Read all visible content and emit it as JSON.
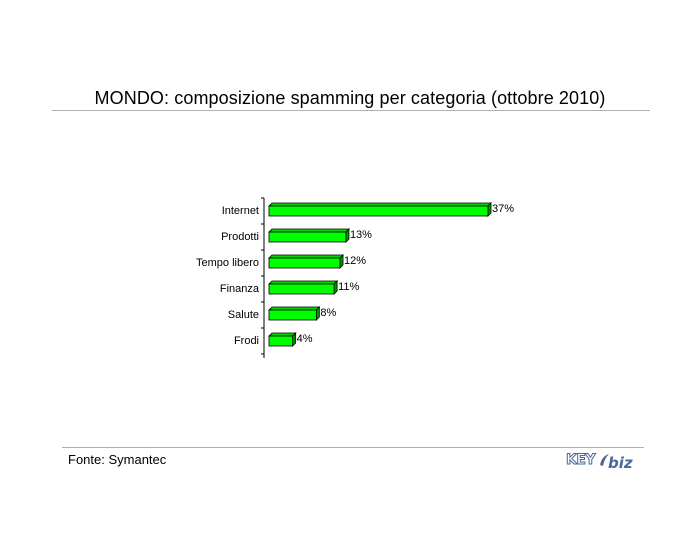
{
  "page": {
    "title": "MONDO: composizione spamming per categoria (ottobre 2010)",
    "source": "Fonte: Symantec",
    "logo": {
      "key_text": "KEY",
      "biz_text": "biz",
      "color": "#4a6a99"
    }
  },
  "chart_data": {
    "type": "bar",
    "orientation": "horizontal",
    "title": "MONDO: composizione spamming per categoria (ottobre 2010)",
    "categories": [
      "Internet",
      "Prodotti",
      "Tempo libero",
      "Finanza",
      "Salute",
      "Frodi"
    ],
    "values": [
      37,
      13,
      12,
      11,
      8,
      4
    ],
    "value_labels": [
      "37%",
      "13%",
      "12%",
      "11%",
      "8%",
      "4%"
    ],
    "unit": "%",
    "xlim": [
      0,
      37
    ],
    "bar_color": "#00ff00",
    "bar_style": "3d",
    "grid": false,
    "legend": "none"
  }
}
